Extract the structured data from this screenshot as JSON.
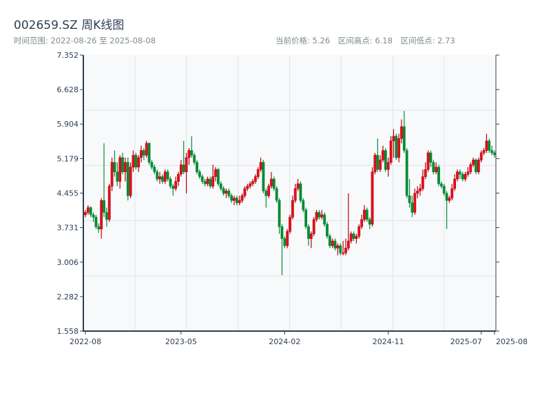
{
  "header": {
    "title": "002659.SZ 周K线图",
    "range_label": "时间范围: 2022-08-26 至 2025-08-08",
    "current_price": "当前价格: 5.26",
    "period_high": "区间高点: 6.18",
    "period_low": "区间低点: 2.73"
  },
  "chart_data": {
    "type": "candlestick",
    "title": "002659.SZ 周K线图",
    "interval": "weekly",
    "start_date": "2022-08-26",
    "end_date": "2025-08-08",
    "ylim": [
      1.558,
      7.352
    ],
    "y_ticks": [
      "1.558",
      "2.282",
      "3.006",
      "3.731",
      "4.455",
      "5.179",
      "5.904",
      "6.628",
      "7.352"
    ],
    "x_ticks": [
      "2022-08",
      "2023-05",
      "2024-02",
      "2024-11",
      "2025-07",
      "2025-08"
    ],
    "grid": true,
    "colors": {
      "up": "#e3101b",
      "up_border": "#b8000c",
      "down": "#078a34",
      "axis": "#2c3e50",
      "grid": "#e1e4e8",
      "bg": "#f7f9fb"
    },
    "ohlc": [
      [
        4.0,
        4.1,
        3.95,
        4.05
      ],
      [
        4.05,
        4.2,
        4.0,
        4.15
      ],
      [
        4.15,
        4.18,
        3.95,
        4.0
      ],
      [
        4.0,
        4.05,
        3.85,
        3.95
      ],
      [
        3.95,
        4.0,
        3.7,
        3.75
      ],
      [
        3.75,
        3.82,
        3.62,
        3.7
      ],
      [
        3.7,
        4.35,
        3.5,
        4.3
      ],
      [
        4.3,
        5.5,
        3.95,
        4.05
      ],
      [
        4.05,
        4.15,
        3.75,
        3.9
      ],
      [
        3.9,
        4.65,
        3.85,
        4.6
      ],
      [
        4.6,
        5.2,
        4.5,
        5.1
      ],
      [
        5.1,
        5.35,
        4.8,
        4.9
      ],
      [
        4.9,
        5.1,
        4.6,
        4.7
      ],
      [
        4.7,
        5.25,
        4.55,
        5.2
      ],
      [
        5.2,
        5.3,
        4.85,
        4.9
      ],
      [
        4.9,
        5.2,
        4.7,
        5.1
      ],
      [
        5.1,
        5.2,
        4.3,
        4.4
      ],
      [
        4.4,
        5.1,
        4.35,
        5.0
      ],
      [
        5.0,
        5.35,
        4.9,
        5.25
      ],
      [
        5.25,
        5.3,
        4.95,
        5.0
      ],
      [
        5.0,
        5.25,
        4.9,
        5.2
      ],
      [
        5.2,
        5.45,
        5.1,
        5.35
      ],
      [
        5.35,
        5.4,
        5.15,
        5.25
      ],
      [
        5.25,
        5.55,
        5.2,
        5.5
      ],
      [
        5.5,
        5.52,
        5.05,
        5.1
      ],
      [
        5.1,
        5.15,
        4.95,
        5.0
      ],
      [
        5.0,
        5.05,
        4.85,
        4.9
      ],
      [
        4.9,
        4.95,
        4.7,
        4.75
      ],
      [
        4.75,
        4.9,
        4.65,
        4.8
      ],
      [
        4.8,
        4.85,
        4.65,
        4.7
      ],
      [
        4.7,
        4.95,
        4.65,
        4.9
      ],
      [
        4.9,
        4.95,
        4.7,
        4.75
      ],
      [
        4.75,
        4.8,
        4.55,
        4.6
      ],
      [
        4.6,
        4.65,
        4.4,
        4.55
      ],
      [
        4.55,
        4.8,
        4.5,
        4.7
      ],
      [
        4.7,
        4.9,
        4.6,
        4.85
      ],
      [
        4.85,
        5.15,
        4.8,
        5.05
      ],
      [
        5.05,
        5.55,
        4.85,
        4.9
      ],
      [
        4.9,
        5.3,
        4.45,
        5.2
      ],
      [
        5.2,
        5.4,
        5.05,
        5.35
      ],
      [
        5.35,
        5.65,
        5.2,
        5.25
      ],
      [
        5.25,
        5.3,
        5.05,
        5.1
      ],
      [
        5.1,
        5.15,
        4.85,
        4.9
      ],
      [
        4.9,
        4.95,
        4.75,
        4.8
      ],
      [
        4.8,
        4.85,
        4.65,
        4.7
      ],
      [
        4.7,
        4.75,
        4.6,
        4.65
      ],
      [
        4.65,
        4.8,
        4.6,
        4.75
      ],
      [
        4.75,
        4.8,
        4.55,
        4.6
      ],
      [
        4.6,
        5.05,
        4.55,
        4.8
      ],
      [
        4.8,
        5.0,
        4.7,
        4.95
      ],
      [
        4.95,
        4.98,
        4.6,
        4.65
      ],
      [
        4.65,
        4.7,
        4.5,
        4.55
      ],
      [
        4.55,
        4.6,
        4.4,
        4.45
      ],
      [
        4.45,
        4.55,
        4.35,
        4.5
      ],
      [
        4.5,
        4.55,
        4.35,
        4.4
      ],
      [
        4.4,
        4.45,
        4.25,
        4.3
      ],
      [
        4.3,
        4.4,
        4.2,
        4.35
      ],
      [
        4.35,
        4.4,
        4.2,
        4.25
      ],
      [
        4.25,
        4.4,
        4.2,
        4.3
      ],
      [
        4.3,
        4.45,
        4.25,
        4.4
      ],
      [
        4.4,
        4.6,
        4.35,
        4.55
      ],
      [
        4.55,
        4.65,
        4.5,
        4.6
      ],
      [
        4.6,
        4.7,
        4.55,
        4.65
      ],
      [
        4.65,
        4.75,
        4.6,
        4.7
      ],
      [
        4.7,
        4.85,
        4.65,
        4.8
      ],
      [
        4.8,
        5.0,
        4.75,
        4.95
      ],
      [
        4.95,
        5.2,
        4.9,
        5.1
      ],
      [
        5.1,
        5.15,
        4.45,
        4.5
      ],
      [
        4.5,
        4.55,
        4.15,
        4.4
      ],
      [
        4.4,
        4.65,
        4.35,
        4.6
      ],
      [
        4.6,
        4.9,
        4.55,
        4.75
      ],
      [
        4.75,
        4.8,
        4.5,
        4.55
      ],
      [
        4.55,
        4.6,
        4.25,
        4.3
      ],
      [
        4.3,
        4.35,
        3.6,
        3.75
      ],
      [
        3.75,
        3.8,
        2.73,
        3.5
      ],
      [
        3.5,
        3.55,
        3.3,
        3.35
      ],
      [
        3.35,
        3.7,
        3.3,
        3.65
      ],
      [
        3.65,
        4.0,
        3.6,
        3.95
      ],
      [
        3.95,
        4.4,
        3.9,
        4.3
      ],
      [
        4.3,
        4.65,
        4.25,
        4.55
      ],
      [
        4.55,
        4.75,
        4.5,
        4.65
      ],
      [
        4.65,
        4.7,
        4.25,
        4.3
      ],
      [
        4.3,
        4.35,
        4.05,
        4.1
      ],
      [
        4.1,
        4.15,
        3.7,
        3.75
      ],
      [
        3.75,
        3.8,
        3.35,
        3.5
      ],
      [
        3.5,
        3.65,
        3.3,
        3.6
      ],
      [
        3.6,
        3.95,
        3.55,
        3.9
      ],
      [
        3.9,
        4.1,
        3.85,
        4.05
      ],
      [
        4.05,
        4.1,
        3.9,
        3.95
      ],
      [
        3.95,
        4.1,
        3.9,
        4.0
      ],
      [
        4.0,
        4.05,
        3.75,
        3.8
      ],
      [
        3.8,
        3.85,
        3.5,
        3.55
      ],
      [
        3.55,
        3.6,
        3.3,
        3.35
      ],
      [
        3.35,
        3.5,
        3.3,
        3.45
      ],
      [
        3.45,
        3.5,
        3.25,
        3.3
      ],
      [
        3.3,
        3.4,
        3.15,
        3.35
      ],
      [
        3.35,
        3.4,
        3.15,
        3.2
      ],
      [
        3.2,
        3.45,
        3.15,
        3.2
      ],
      [
        3.2,
        3.5,
        3.15,
        3.3
      ],
      [
        3.3,
        4.45,
        3.25,
        3.45
      ],
      [
        3.45,
        3.65,
        3.4,
        3.6
      ],
      [
        3.6,
        3.65,
        3.45,
        3.5
      ],
      [
        3.5,
        3.6,
        3.4,
        3.55
      ],
      [
        3.55,
        3.8,
        3.5,
        3.75
      ],
      [
        3.75,
        4.0,
        3.7,
        3.9
      ],
      [
        3.9,
        4.2,
        3.85,
        4.1
      ],
      [
        4.1,
        4.15,
        3.85,
        3.9
      ],
      [
        3.9,
        3.95,
        3.7,
        3.8
      ],
      [
        3.8,
        5.0,
        3.75,
        4.9
      ],
      [
        4.9,
        5.3,
        4.85,
        5.25
      ],
      [
        5.25,
        5.6,
        4.9,
        4.95
      ],
      [
        4.95,
        5.25,
        4.9,
        5.15
      ],
      [
        5.15,
        5.45,
        5.1,
        5.35
      ],
      [
        5.35,
        5.4,
        4.9,
        4.95
      ],
      [
        4.95,
        5.2,
        4.8,
        5.1
      ],
      [
        5.1,
        5.65,
        5.05,
        5.55
      ],
      [
        5.55,
        5.8,
        5.2,
        5.65
      ],
      [
        5.65,
        5.7,
        5.15,
        5.2
      ],
      [
        5.2,
        5.7,
        5.1,
        5.6
      ],
      [
        5.6,
        6.0,
        5.5,
        5.85
      ],
      [
        5.85,
        6.18,
        5.3,
        5.35
      ],
      [
        5.35,
        5.4,
        4.35,
        4.4
      ],
      [
        4.4,
        4.75,
        4.15,
        4.25
      ],
      [
        4.25,
        4.4,
        3.95,
        4.05
      ],
      [
        4.05,
        4.55,
        4.0,
        4.45
      ],
      [
        4.45,
        4.6,
        4.35,
        4.5
      ],
      [
        4.5,
        4.65,
        4.4,
        4.55
      ],
      [
        4.55,
        4.95,
        4.5,
        4.8
      ],
      [
        4.8,
        5.1,
        4.75,
        4.95
      ],
      [
        4.95,
        5.35,
        4.9,
        5.3
      ],
      [
        5.3,
        5.35,
        5.0,
        5.1
      ],
      [
        5.1,
        5.15,
        4.85,
        4.9
      ],
      [
        4.9,
        5.1,
        4.85,
        5.0
      ],
      [
        5.0,
        5.05,
        4.6,
        4.65
      ],
      [
        4.65,
        4.7,
        4.55,
        4.6
      ],
      [
        4.6,
        4.65,
        4.4,
        4.45
      ],
      [
        4.45,
        4.5,
        3.7,
        4.3
      ],
      [
        4.3,
        4.4,
        4.25,
        4.35
      ],
      [
        4.35,
        4.65,
        4.3,
        4.55
      ],
      [
        4.55,
        4.85,
        4.5,
        4.75
      ],
      [
        4.75,
        4.95,
        4.7,
        4.9
      ],
      [
        4.9,
        4.95,
        4.75,
        4.85
      ],
      [
        4.85,
        4.9,
        4.7,
        4.75
      ],
      [
        4.75,
        4.9,
        4.7,
        4.85
      ],
      [
        4.85,
        5.0,
        4.8,
        4.9
      ],
      [
        4.9,
        5.1,
        4.85,
        5.05
      ],
      [
        5.05,
        5.2,
        5.0,
        5.15
      ],
      [
        5.15,
        5.18,
        4.85,
        4.9
      ],
      [
        4.9,
        5.2,
        4.85,
        5.15
      ],
      [
        5.15,
        5.35,
        5.1,
        5.3
      ],
      [
        5.3,
        5.4,
        5.25,
        5.35
      ],
      [
        5.35,
        5.7,
        5.3,
        5.55
      ],
      [
        5.55,
        5.6,
        5.3,
        5.35
      ],
      [
        5.35,
        5.45,
        5.25,
        5.3
      ],
      [
        5.3,
        5.35,
        5.2,
        5.26
      ]
    ]
  }
}
